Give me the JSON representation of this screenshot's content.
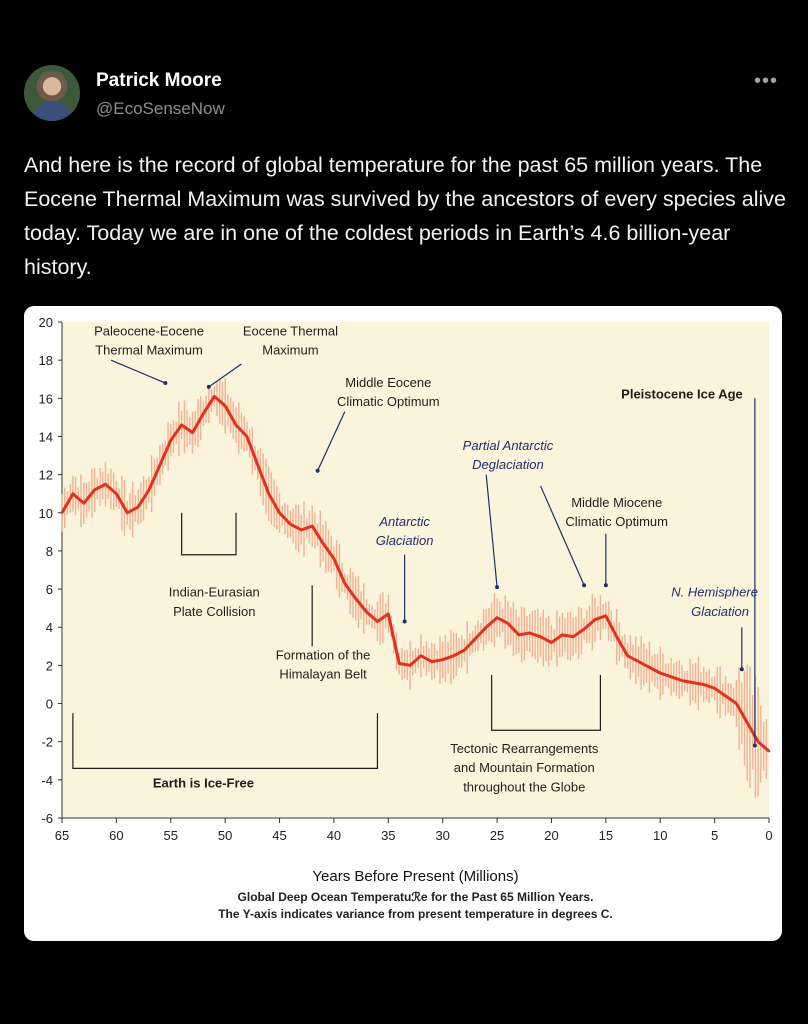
{
  "tweet": {
    "author_name": "Patrick Moore",
    "handle": "@EcoSenseNow",
    "more_icon": "more-horizontal-icon",
    "text": "And here is the record of global temperature for the past 65 million years. The Eocene Thermal Maximum was survived by the ancestors of every species alive today. Today we are in one of the coldest periods in Earth’s 4.6 billion-year history."
  },
  "chart_data": {
    "type": "line",
    "xlabel": "Years Before Present (Millions)",
    "caption_line1": "Global Deep Ocean Temperatuℛe for the Past 65 Million Years.",
    "caption_line2": "The Y-axis indicates variance from present temperature in degrees C.",
    "xlim": [
      65,
      0
    ],
    "ylim": [
      -6,
      20
    ],
    "x_ticks": [
      65,
      60,
      55,
      50,
      45,
      40,
      35,
      30,
      25,
      20,
      15,
      10,
      5,
      0
    ],
    "y_ticks": [
      20,
      18,
      16,
      14,
      12,
      10,
      8,
      6,
      4,
      2,
      0,
      -2,
      -4,
      -6
    ],
    "series": [
      {
        "color": "#e0321e",
        "x": [
          65,
          64,
          63,
          62,
          61,
          60,
          59,
          58,
          57,
          56,
          55,
          54,
          53,
          52,
          51,
          50,
          49,
          48,
          47,
          46,
          45,
          44,
          43,
          42,
          41,
          40,
          39,
          38,
          37,
          36,
          35,
          34,
          33,
          32,
          31,
          30,
          29,
          28,
          27,
          26,
          25,
          24,
          23,
          22,
          21,
          20,
          19,
          18,
          17,
          16,
          15,
          14,
          13,
          12,
          11,
          10,
          9,
          8,
          7,
          6,
          5,
          4,
          3,
          2,
          1,
          0
        ],
        "y": [
          10,
          11,
          10.5,
          11.2,
          11.5,
          11,
          10,
          10.3,
          11.2,
          12.5,
          13.8,
          14.6,
          14.2,
          15.2,
          16.1,
          15.6,
          14.6,
          14,
          12.5,
          11,
          10,
          9.4,
          9.1,
          9.3,
          8.4,
          7.6,
          6.3,
          5.5,
          4.8,
          4.3,
          4.7,
          2.1,
          2,
          2.5,
          2.2,
          2.3,
          2.5,
          2.8,
          3.4,
          4,
          4.5,
          4.2,
          3.6,
          3.7,
          3.5,
          3.2,
          3.6,
          3.5,
          3.9,
          4.4,
          4.6,
          3.5,
          2.5,
          2.2,
          1.9,
          1.6,
          1.4,
          1.2,
          1.1,
          1,
          0.8,
          0.4,
          0,
          -1,
          -2,
          -2.5
        ]
      }
    ],
    "annotations": [
      {
        "text": "Paleocene-Eocene",
        "x": 57,
        "y": 19.3
      },
      {
        "text": "Thermal Maximum",
        "x": 57,
        "y": 18.3
      },
      {
        "text": "Eocene Thermal",
        "x": 44,
        "y": 19.3
      },
      {
        "text": "Maximum",
        "x": 44,
        "y": 18.3
      },
      {
        "text": "Middle Eocene",
        "x": 35,
        "y": 16.6
      },
      {
        "text": "Climatic Optimum",
        "x": 35,
        "y": 15.6
      },
      {
        "text": "Pleistocene Ice Age",
        "x": 8,
        "y": 16
      },
      {
        "text": "Partial Antarctic",
        "x": 24,
        "y": 13.3
      },
      {
        "text": "Deglaciation",
        "x": 24,
        "y": 12.3
      },
      {
        "text": "Middle Miocene",
        "x": 14,
        "y": 10.3
      },
      {
        "text": "Climatic Optimum",
        "x": 14,
        "y": 9.3
      },
      {
        "text": "Antarctic",
        "x": 33.5,
        "y": 9.3
      },
      {
        "text": "Glaciation",
        "x": 33.5,
        "y": 8.3
      },
      {
        "text": "Indian-Eurasian",
        "x": 51,
        "y": 5.6
      },
      {
        "text": "Plate Collision",
        "x": 51,
        "y": 4.6
      },
      {
        "text": "N. Hemisphere",
        "x": 5,
        "y": 5.6
      },
      {
        "text": "Glaciation",
        "x": 4.5,
        "y": 4.6
      },
      {
        "text": "Formation of the",
        "x": 41,
        "y": 2.3
      },
      {
        "text": "Himalayan Belt",
        "x": 41,
        "y": 1.3
      },
      {
        "text": "Earth is Ice-Free",
        "x": 52,
        "y": -4.4
      },
      {
        "text": "Tectonic Rearrangements",
        "x": 22.5,
        "y": -2.6
      },
      {
        "text": "and Mountain Formation",
        "x": 22.5,
        "y": -3.6
      },
      {
        "text": "throughout the Globe",
        "x": 22.5,
        "y": -4.6
      }
    ]
  }
}
